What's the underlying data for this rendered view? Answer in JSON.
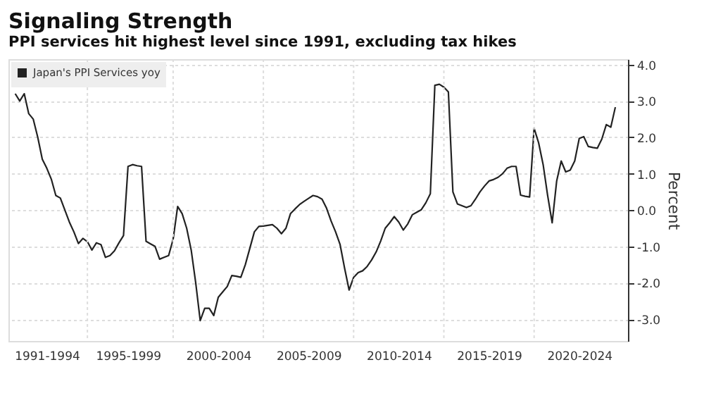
{
  "chart_data": {
    "type": "line",
    "title": "Signaling Strength",
    "subtitle": "PPI services hit highest level since 1991, excluding tax hikes",
    "ylabel": "Percent",
    "categories": [
      null,
      null,
      null,
      null,
      null,
      null,
      null,
      "1991-1994",
      null,
      null,
      null,
      null,
      null,
      null,
      null,
      null,
      null,
      null,
      null,
      null,
      null,
      null,
      null,
      null,
      null,
      "1995-1999",
      null,
      null,
      null,
      null,
      null,
      null,
      null,
      null,
      null,
      null,
      null,
      null,
      null,
      null,
      null,
      null,
      null,
      null,
      null,
      "2000-2004",
      null,
      null,
      null,
      null,
      null,
      null,
      null,
      null,
      null,
      null,
      null,
      null,
      null,
      null,
      null,
      null,
      null,
      null,
      null,
      "2005-2009",
      null,
      null,
      null,
      null,
      null,
      null,
      null,
      null,
      null,
      null,
      null,
      null,
      null,
      null,
      null,
      null,
      null,
      null,
      null,
      "2010-2014",
      null,
      null,
      null,
      null,
      null,
      null,
      null,
      null,
      null,
      null,
      null,
      null,
      null,
      null,
      null,
      null,
      null,
      null,
      null,
      "2015-2019",
      null,
      null,
      null,
      null,
      null,
      null,
      null,
      null,
      null,
      null,
      null,
      null,
      null,
      null,
      null,
      null,
      null,
      null,
      null,
      "2020-2024",
      null,
      null,
      null,
      null,
      null,
      null,
      null,
      null
    ],
    "series": [
      {
        "name": "Japan's PPI Services yoy",
        "color": "#222222",
        "values": [
          3.2,
          3.0,
          3.2,
          2.65,
          2.5,
          2.0,
          1.4,
          1.15,
          0.85,
          0.4,
          0.33,
          0.0,
          -0.33,
          -0.6,
          -0.92,
          -0.78,
          -0.87,
          -1.1,
          -0.9,
          -0.95,
          -1.3,
          -1.25,
          -1.12,
          -0.9,
          -0.7,
          1.2,
          1.25,
          1.22,
          1.2,
          -0.86,
          -0.93,
          -1.0,
          -1.35,
          -1.3,
          -1.25,
          -0.8,
          0.1,
          -0.1,
          -0.5,
          -1.1,
          -2.0,
          -3.04,
          -2.7,
          -2.7,
          -2.9,
          -2.4,
          -2.25,
          -2.1,
          -1.8,
          -1.82,
          -1.85,
          -1.5,
          -1.05,
          -0.6,
          -0.45,
          -0.44,
          -0.42,
          -0.4,
          -0.5,
          -0.65,
          -0.5,
          -0.1,
          0.03,
          0.15,
          0.24,
          0.32,
          0.4,
          0.37,
          0.3,
          0.05,
          -0.3,
          -0.6,
          -0.95,
          -1.6,
          -2.2,
          -1.85,
          -1.72,
          -1.67,
          -1.55,
          -1.37,
          -1.15,
          -0.85,
          -0.5,
          -0.35,
          -0.18,
          -0.33,
          -0.55,
          -0.38,
          -0.13,
          -0.06,
          0.01,
          0.2,
          0.45,
          3.43,
          3.46,
          3.38,
          3.25,
          0.5,
          0.17,
          0.12,
          0.07,
          0.12,
          0.3,
          0.5,
          0.66,
          0.8,
          0.84,
          0.9,
          1.0,
          1.15,
          1.2,
          1.2,
          0.41,
          0.38,
          0.36,
          2.25,
          1.85,
          1.25,
          0.4,
          -0.35,
          0.8,
          1.35,
          1.05,
          1.1,
          1.35,
          1.97,
          2.02,
          1.75,
          1.72,
          1.7,
          1.95,
          2.35,
          2.28,
          2.83
        ]
      }
    ],
    "ylim": [
      -3.6,
      4.15
    ],
    "yticks": [
      {
        "value": -3,
        "label": "-3.0"
      },
      {
        "value": -2,
        "label": "-2.0"
      },
      {
        "value": -1,
        "label": "-1.0"
      },
      {
        "value": 0,
        "label": "0.0"
      },
      {
        "value": 1,
        "label": "1.0"
      },
      {
        "value": 2,
        "label": "2.0"
      },
      {
        "value": 3,
        "label": "3.0"
      },
      {
        "value": 4,
        "label": "4.0"
      }
    ],
    "grid": true,
    "legend": "top left",
    "marker": "none",
    "line_style": "solid"
  }
}
